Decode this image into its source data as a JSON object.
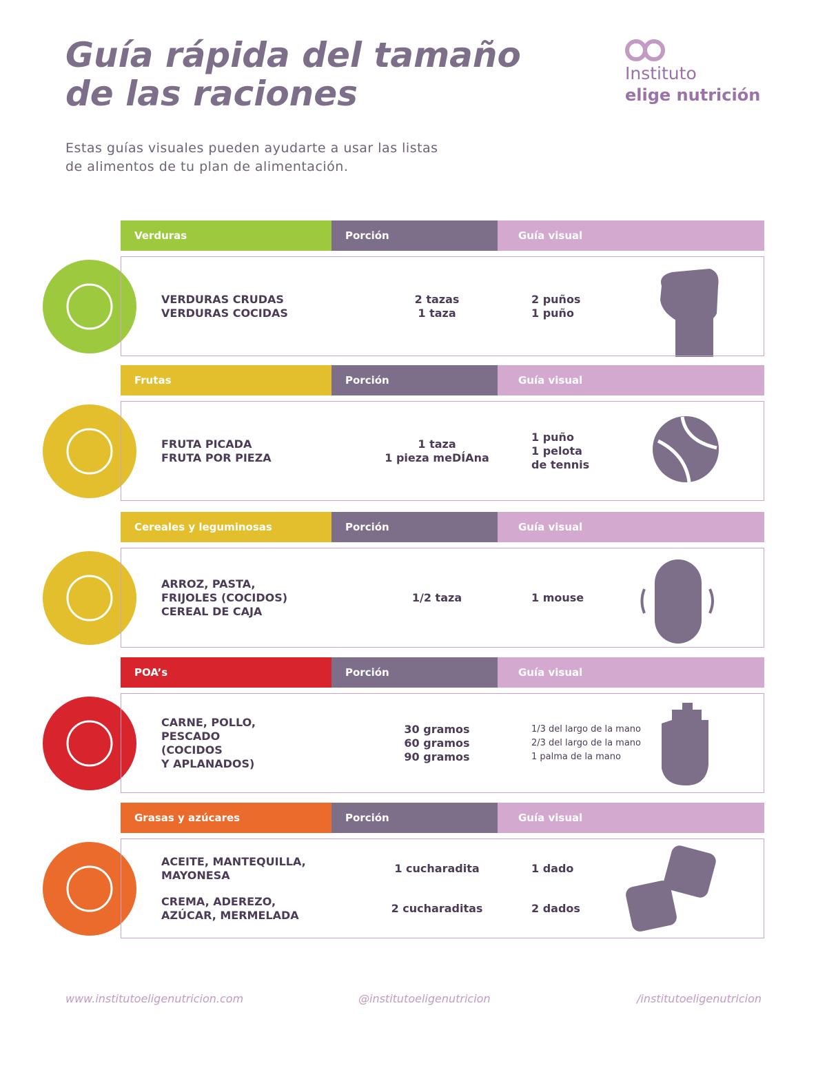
{
  "header": {
    "title": [
      "Guía rápida del tamaño",
      "de las raciones"
    ],
    "logo": [
      "Instituto",
      "elige nutrición"
    ],
    "intro": [
      "Estas guías visuales pueden ayudarte a usar las listas",
      "de alimentos de tu plan de alimentación."
    ]
  },
  "sections": [
    {
      "category": "Verduras",
      "portion_header": "Porción",
      "guide_header": "Guía visual",
      "color": "#9dc93f",
      "groups": [
        {
          "foods": [
            "VERDURAS CRUDAS",
            "VERDURAS COCIDAS"
          ],
          "portions": [
            "2 tazas",
            "1 taza"
          ],
          "guides": [
            "2 puños",
            "1 puño"
          ]
        }
      ]
    },
    {
      "category": "Frutas",
      "portion_header": "Porción",
      "guide_header": "Guía visual",
      "color": "#e3bf2d",
      "groups": [
        {
          "foods": [
            "FRUTA PICADA",
            "FRUTA POR PIEZA"
          ],
          "portions": [
            "1 taza",
            "1 pieza meDÍAna"
          ],
          "guides": [
            "1 puño",
            "1 pelota",
            "de tennis"
          ]
        }
      ]
    },
    {
      "category": "Cereales y leguminosas",
      "portion_header": "Porción",
      "guide_header": "Guía visual",
      "color": "#e3bf2d",
      "groups": [
        {
          "foods": [
            "ARROZ, PASTA,",
            "FRIJOLES (COCIDOS)",
            "CEREAL DE CAJA"
          ],
          "portions": [
            "1/2 taza"
          ],
          "guides": [
            "1 mouse"
          ]
        }
      ]
    },
    {
      "category": "POA’s",
      "portion_header": "Porción",
      "guide_header": "Guía visual",
      "color": "#d8242c",
      "groups": [
        {
          "foods": [
            "CARNE, POLLO,",
            "PESCADO",
            "(COCIDOS",
            "Y APLANADOS)"
          ],
          "portions": [
            "30 gramos",
            "60 gramos",
            "90 gramos"
          ],
          "guides": [
            "1/3 del largo de la mano",
            "2/3 del largo de la mano",
            "1 palma de la mano"
          ]
        }
      ]
    },
    {
      "category": "Grasas y azúcares",
      "portion_header": "Porción",
      "guide_header": "Guía visual",
      "color": "#ea6b2b",
      "groups": [
        {
          "foods": [
            "ACEITE, MANTEQUILLA,",
            "MAYONESA"
          ],
          "portions": [
            "1 cucharadita"
          ],
          "guides": [
            "1 dado"
          ]
        },
        {
          "foods": [
            "CREMA, ADEREZO,",
            "AZÚCAR, MERMELADA"
          ],
          "portions": [
            "2 cucharaditas"
          ],
          "guides": [
            "2 dados"
          ]
        }
      ]
    }
  ],
  "footer": {
    "website": "www.institutoeligenutricion.com",
    "instagram": "@institutoeligenutricion",
    "facebook": "/institutoeligenutricion"
  }
}
